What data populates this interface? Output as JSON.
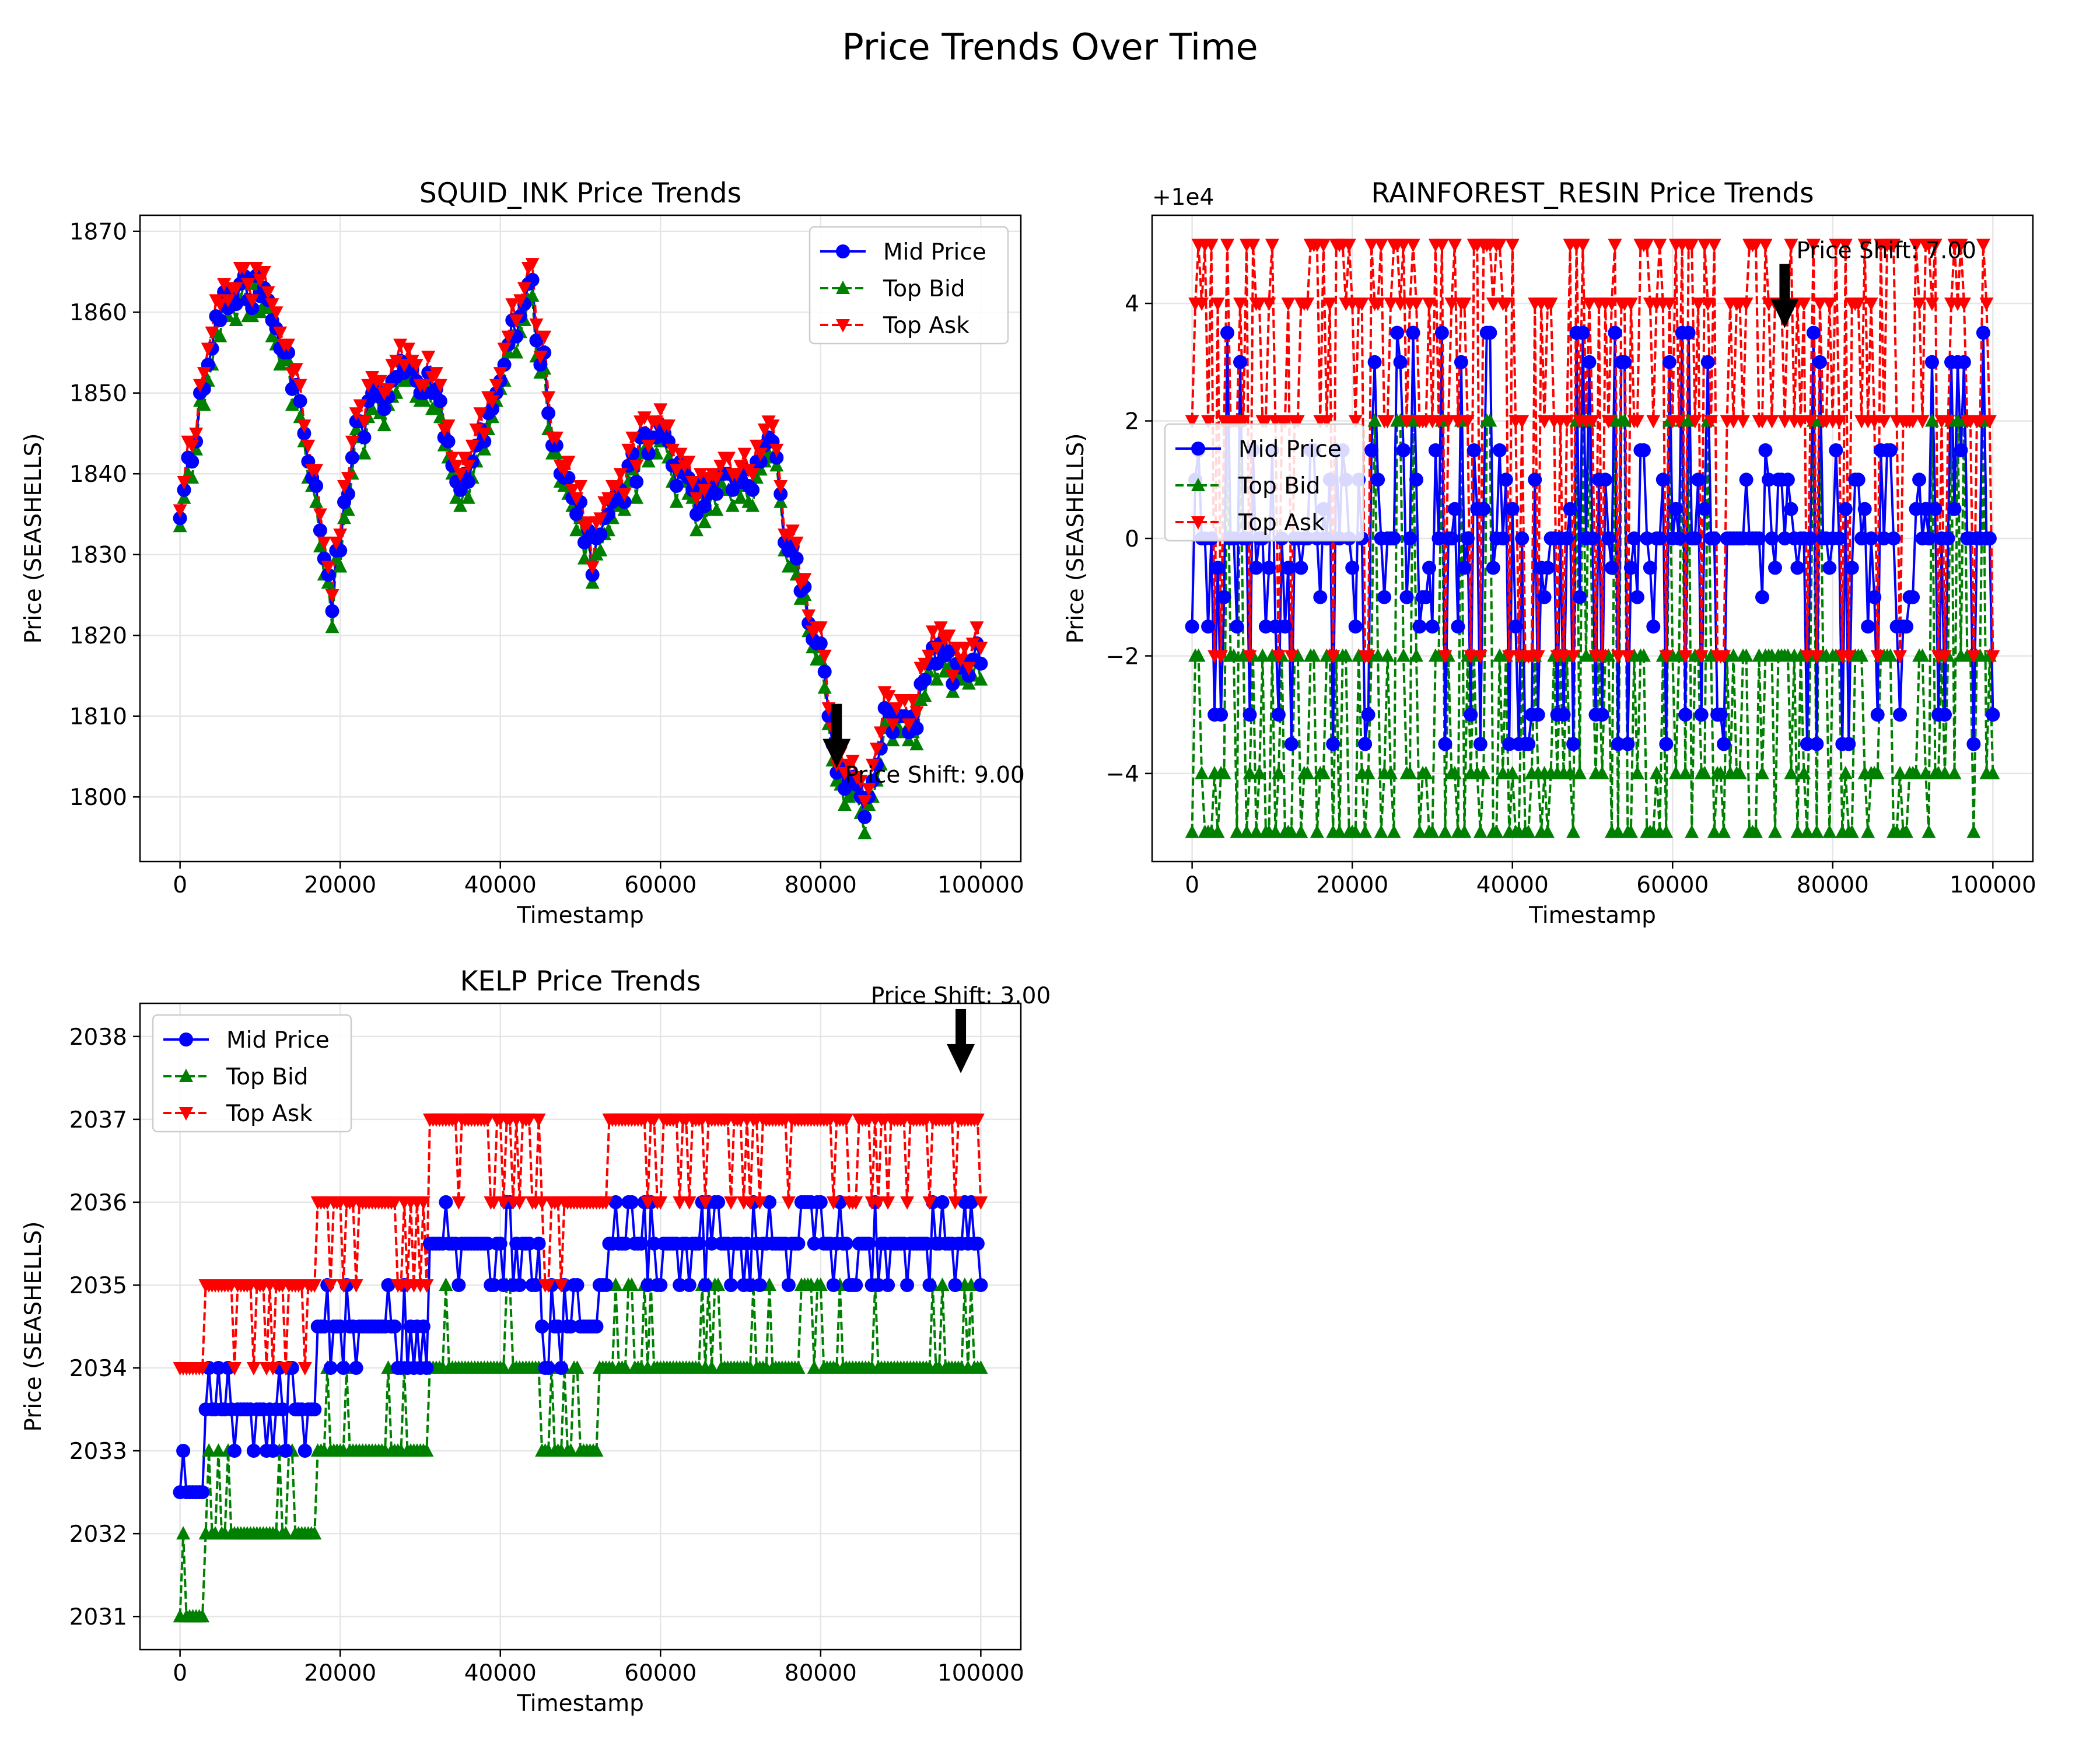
{
  "figure": {
    "suptitle": "Price Trends Over Time"
  },
  "legend_labels": [
    "Mid Price",
    "Top Bid",
    "Top Ask"
  ],
  "colors": {
    "mid": "#0000ff",
    "bid": "#008000",
    "ask": "#ff0000",
    "grid": "#e6e6e6",
    "annotation": "#000000"
  },
  "chart_data": [
    {
      "type": "line",
      "title": "SQUID_INK Price Trends",
      "xlabel": "Timestamp",
      "ylabel": "Price (SEASHELLS)",
      "xlim": [
        -5000,
        105000
      ],
      "ylim": [
        1792,
        1872
      ],
      "xticks": [
        0,
        20000,
        40000,
        60000,
        80000,
        100000
      ],
      "xtick_labels": [
        "0",
        "20000",
        "40000",
        "60000",
        "80000",
        "100000"
      ],
      "yticks": [
        1800,
        1810,
        1820,
        1830,
        1840,
        1850,
        1860,
        1870
      ],
      "ytick_labels": [
        "1800",
        "1810",
        "1820",
        "1830",
        "1840",
        "1850",
        "1860",
        "1870"
      ],
      "offset_text": "",
      "grid": true,
      "legend_position": "upper right",
      "spread_mode": "near",
      "seed": 11,
      "anchors_x": [
        0,
        5000,
        10000,
        15000,
        19000,
        22000,
        27000,
        31000,
        35000,
        40000,
        43500,
        47000,
        51500,
        56000,
        60000,
        64000,
        68000,
        72000,
        74000,
        76000,
        80000,
        82000,
        85500,
        88000,
        91000,
        94000,
        97000,
        100000
      ],
      "anchors_mid": [
        1836,
        1861,
        1863,
        1850,
        1825,
        1845,
        1852,
        1852,
        1838,
        1850,
        1865,
        1843,
        1830,
        1840,
        1846,
        1836,
        1838,
        1840,
        1843,
        1831,
        1818,
        1805,
        1798,
        1810,
        1807,
        1818,
        1816,
        1817
      ],
      "annotation": {
        "text": "Price Shift: 9.00",
        "x": 82000,
        "y": 1803,
        "text_x": 82500,
        "text_y": 1803
      }
    },
    {
      "type": "line",
      "title": "RAINFOREST_RESIN Price Trends",
      "xlabel": "Timestamp",
      "ylabel": "Price (SEASHELLS)",
      "xlim": [
        -5000,
        105000
      ],
      "ylim": [
        -5.5,
        5.5
      ],
      "xticks": [
        0,
        20000,
        40000,
        60000,
        80000,
        100000
      ],
      "xtick_labels": [
        "0",
        "20000",
        "40000",
        "60000",
        "80000",
        "100000"
      ],
      "yticks": [
        -4,
        -2,
        0,
        2,
        4
      ],
      "ytick_labels": [
        "−4",
        "−2",
        "0",
        "2",
        "4"
      ],
      "offset_text": "+1e4",
      "grid": true,
      "legend_position": "center left",
      "spread_mode": "resin",
      "seed": 23,
      "mid_levels": [
        -3.5,
        -3,
        -1.5,
        -1,
        0,
        1,
        1.5,
        3,
        3.5
      ],
      "bid_levels": [
        -5,
        -4,
        -2,
        2
      ],
      "ask_levels": [
        -2,
        2,
        4,
        5
      ],
      "annotation": {
        "text": "Price Shift: 7.00",
        "x": 74000,
        "y": 3.5,
        "text_x": 74000,
        "text_y": 4.6
      }
    },
    {
      "type": "line",
      "title": "KELP Price Trends",
      "xlabel": "Timestamp",
      "ylabel": "Price (SEASHELLS)",
      "xlim": [
        -5000,
        105000
      ],
      "ylim": [
        2030.6,
        2038.4
      ],
      "xticks": [
        0,
        20000,
        40000,
        60000,
        80000,
        100000
      ],
      "xtick_labels": [
        "0",
        "20000",
        "40000",
        "60000",
        "80000",
        "100000"
      ],
      "yticks": [
        2031,
        2032,
        2033,
        2034,
        2035,
        2036,
        2037,
        2038
      ],
      "ytick_labels": [
        "2031",
        "2032",
        "2033",
        "2034",
        "2035",
        "2036",
        "2037",
        "2038"
      ],
      "offset_text": "",
      "grid": true,
      "legend_position": "upper left",
      "spread_mode": "kelp",
      "seed": 37,
      "segments": [
        {
          "x0": 0,
          "x1": 3000,
          "bid": 2031,
          "ask": 2034,
          "mid": 2032.5
        },
        {
          "x0": 3000,
          "x1": 9000,
          "bid": 2032,
          "ask": 2035,
          "mid": 2033.5
        },
        {
          "x0": 9000,
          "x1": 17000,
          "bid": 2032,
          "ask": 2035,
          "mid": 2034.5
        },
        {
          "x0": 17000,
          "x1": 22000,
          "bid": 2033,
          "ask": 2036,
          "mid": 2034.5
        },
        {
          "x0": 22000,
          "x1": 31000,
          "bid": 2033,
          "ask": 2036,
          "mid": 2035
        },
        {
          "x0": 31000,
          "x1": 45000,
          "bid": 2034,
          "ask": 2037,
          "mid": 2035.5
        },
        {
          "x0": 45000,
          "x1": 53000,
          "bid": 2033,
          "ask": 2036,
          "mid": 2035
        },
        {
          "x0": 53000,
          "x1": 74000,
          "bid": 2034,
          "ask": 2037,
          "mid": 2035.5
        },
        {
          "x0": 74000,
          "x1": 100000,
          "bid": 2034,
          "ask": 2037,
          "mid": 2036
        }
      ],
      "annotation": {
        "text": "Price Shift: 3.00",
        "x": 97500,
        "y": 2037.5,
        "text_x": 97500,
        "text_y": 2039
      }
    }
  ]
}
